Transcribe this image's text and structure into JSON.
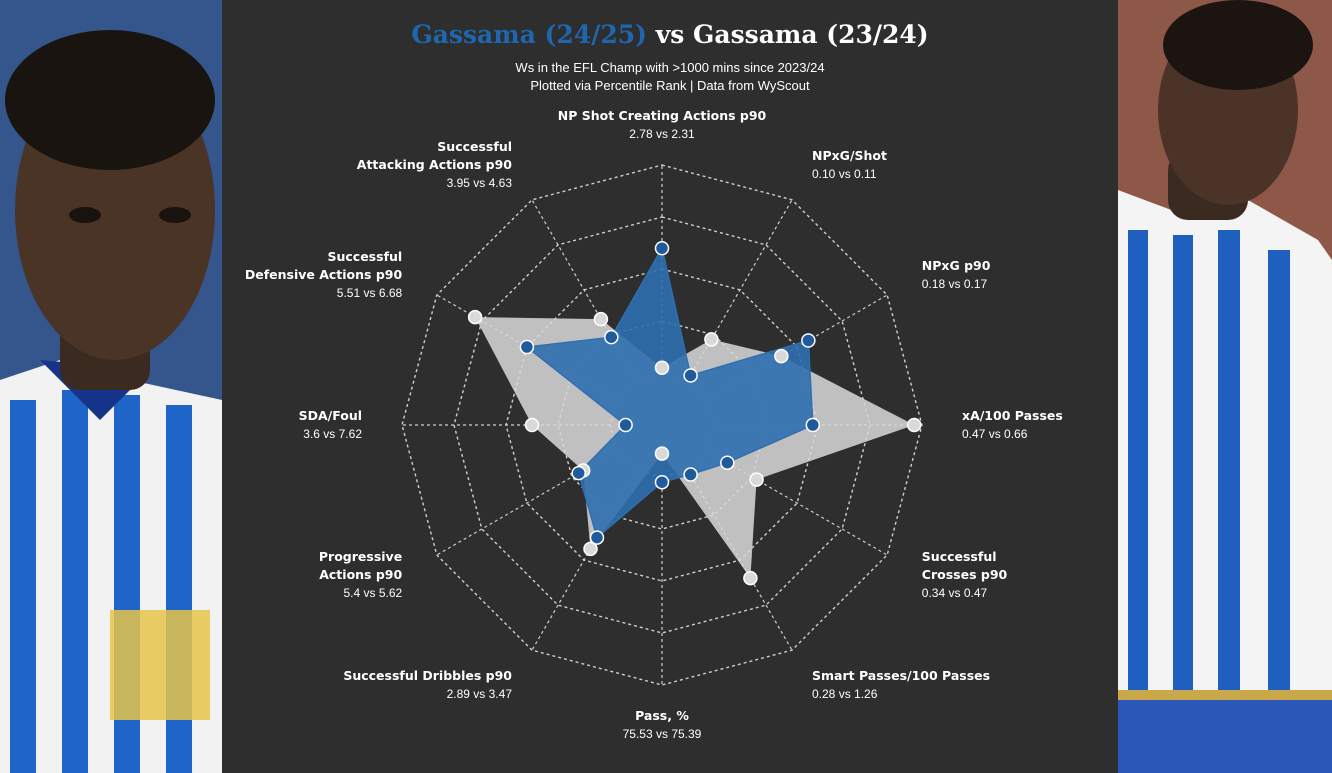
{
  "header": {
    "player_current": "Gassama (24/25)",
    "vs_word": "vs",
    "player_previous": "Gassama (23/24)",
    "subtitle_line1": "Ws in the EFL Champ with >1000 mins since 2023/24",
    "subtitle_line2": "Plotted via Percentile Rank | Data from WyScout"
  },
  "colors": {
    "current": "#2f6fb0",
    "current_point": "#1e5a9c",
    "previous": "#d9d9d9",
    "grid": "#e0e0e0",
    "background": "#2e2e2e",
    "title_highlight": "#1e67b0"
  },
  "photos": {
    "left": "player-photo-left",
    "right": "player-photo-right"
  },
  "chart_data": {
    "type": "radar",
    "scale": "percentile rank",
    "rlim": [
      0,
      100
    ],
    "grid": true,
    "axes": [
      {
        "label_lines": [
          "NP Shot Creating Actions p90"
        ],
        "values_text": "2.78 vs 2.31"
      },
      {
        "label_lines": [
          "NPxG/Shot"
        ],
        "values_text": "0.10 vs 0.11"
      },
      {
        "label_lines": [
          "NPxG p90"
        ],
        "values_text": "0.18 vs 0.17"
      },
      {
        "label_lines": [
          "xA/100 Passes"
        ],
        "values_text": "0.47 vs 0.66"
      },
      {
        "label_lines": [
          "Successful",
          "Crosses p90"
        ],
        "values_text": "0.34 vs 0.47"
      },
      {
        "label_lines": [
          "Smart Passes/100 Passes"
        ],
        "values_text": "0.28 vs 1.26"
      },
      {
        "label_lines": [
          "Pass, %"
        ],
        "values_text": "75.53 vs 75.39"
      },
      {
        "label_lines": [
          "Successful Dribbles p90"
        ],
        "values_text": "2.89 vs 3.47"
      },
      {
        "label_lines": [
          "Progressive",
          "Actions p90"
        ],
        "values_text": "5.4 vs 5.62"
      },
      {
        "label_lines": [
          "SDA/Foul"
        ],
        "values_text": "3.6 vs 7.62"
      },
      {
        "label_lines": [
          "Successful",
          "Defensive Actions p90"
        ],
        "values_text": "5.51 vs 6.68"
      },
      {
        "label_lines": [
          "Successful",
          "Attacking Actions p90"
        ],
        "values_text": "3.95 vs 4.63"
      }
    ],
    "series": [
      {
        "name": "Gassama (24/25)",
        "values": [
          68,
          22,
          65,
          58,
          29,
          22,
          22,
          50,
          37,
          14,
          60,
          39
        ]
      },
      {
        "name": "Gassama (23/24)",
        "values": [
          22,
          38,
          53,
          97,
          42,
          68,
          11,
          55,
          35,
          50,
          83,
          47
        ]
      }
    ]
  }
}
